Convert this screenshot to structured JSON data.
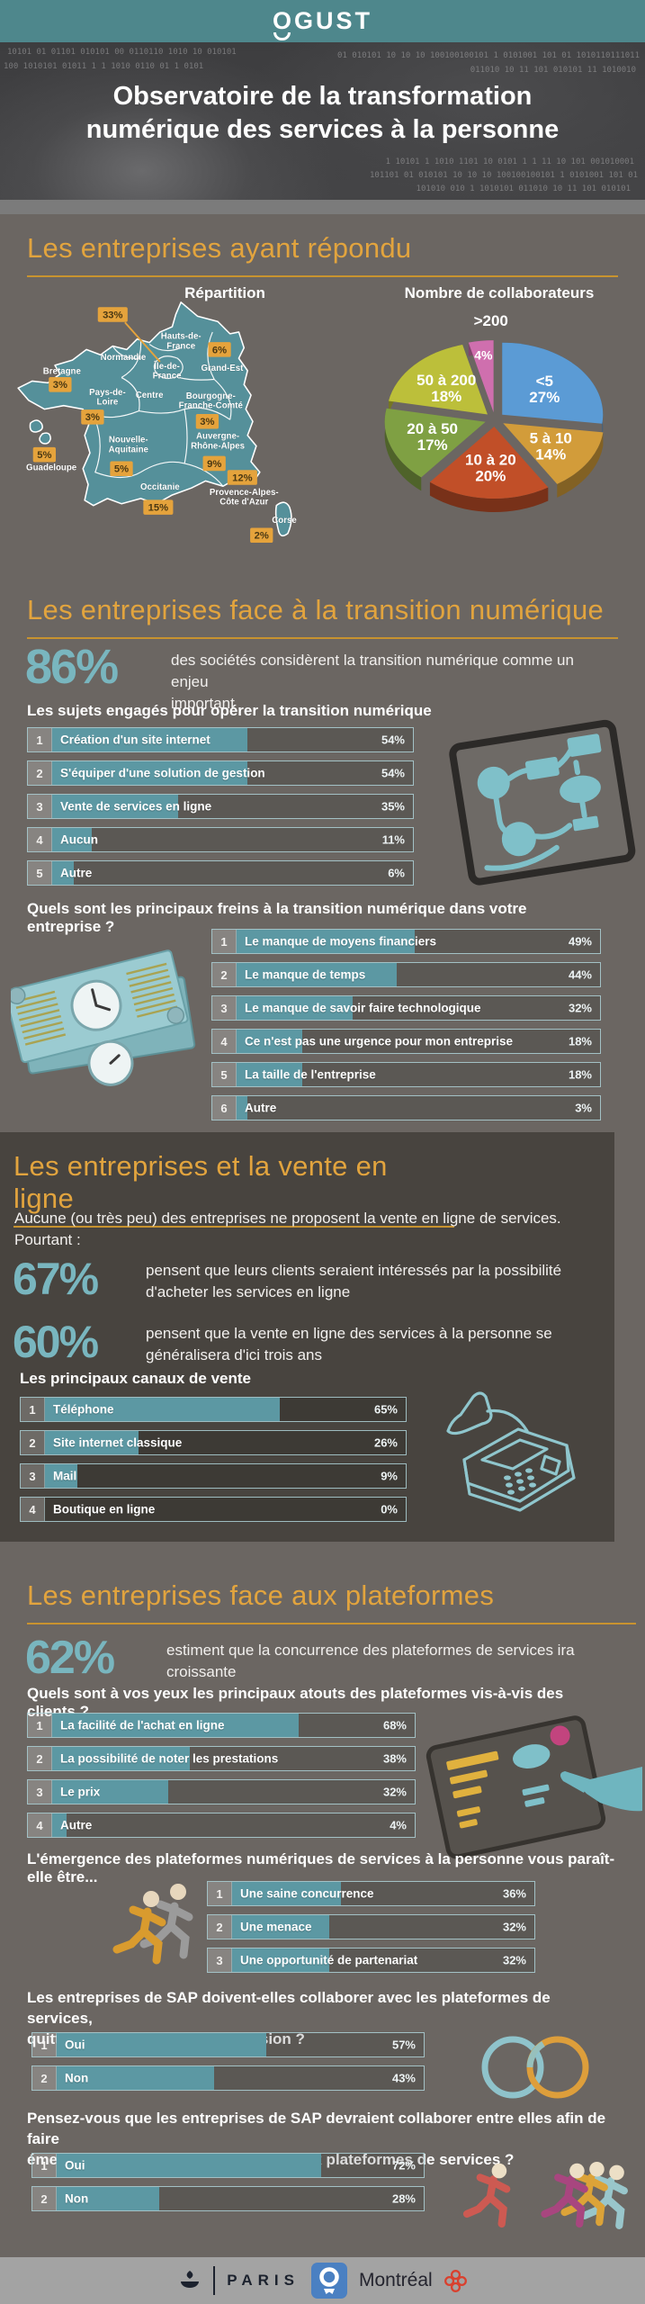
{
  "header": {
    "logo_o": "O",
    "logo_rest": "GUST"
  },
  "hero": {
    "title": "Observatoire de la transformation\nnumérique des services à la personne",
    "binary": [
      "10101 01 01101 010101 00 0110110 1010 10 010101",
      "100 1010101 01011 1 1 1010 0110 01 1 0101",
      "01 010101 10 10 10 100100100101 1 0101001 101 01 1010110111011",
      "011010 10 11 101 010101 11 1010010",
      "1 10101 1 1010 1101 10 0101 1 1 11 10 101 001010001",
      "101101 01 010101 10 10 10 100100100101 1 0101001 101 01",
      "101010 010 1 1010101 011010 10 11 101 010101"
    ]
  },
  "colors": {
    "header_teal": "#4e878c",
    "page_bg": "#6b6662",
    "dark_panel": "#48443f",
    "accent_orange": "#e2a43e",
    "stat_teal": "#79b6bf",
    "bar_fill": "#5c98a3",
    "map_region": "#55909a",
    "badge_bg": "#e5a33c",
    "footer_bg": "#a3a3a3",
    "montreal_red": "#d9402e",
    "ogust_blue": "#4a80c2"
  },
  "sections": {
    "respondents": {
      "heading": "Les entreprises ayant répondu"
    },
    "transition": {
      "heading": "Les entreprises face à la transition numérique",
      "stat_value": "86%",
      "stat_text": "des sociétés considèrent la transition numérique comme un enjeu\nimportant"
    },
    "vente": {
      "heading": "Les entreprises et la vente en ligne",
      "intro": "Aucune (ou très peu) des entreprises ne proposent la vente en ligne de services.\nPourtant :",
      "stat1_value": "67%",
      "stat1_text": "pensent que leurs clients seraient intéressés par la possibilité\nd'acheter les services en ligne",
      "stat2_value": "60%",
      "stat2_text": "pensent que la vente en ligne des services à la personne se\ngénéralisera d'ici trois ans"
    },
    "plateformes": {
      "heading": "Les entreprises face aux plateformes",
      "stat_value": "62%",
      "stat_text": "estiment que la concurrence des plateformes de services ira\ncroissante"
    }
  },
  "footer": {
    "paris_label": "PARIS",
    "montreal_label": "Montréal"
  },
  "chart_data": [
    {
      "id": "repartition",
      "type": "table",
      "title": "Répartition",
      "regions": [
        {
          "name": "Île-de-France",
          "value": 33
        },
        {
          "name": "Hauts-de-France",
          "value": null
        },
        {
          "name": "Normandie",
          "value": null
        },
        {
          "name": "Bretagne",
          "value": 3
        },
        {
          "name": "Pays-de-Loire",
          "value": 3
        },
        {
          "name": "Centre",
          "value": null
        },
        {
          "name": "Grand-Est",
          "value": 6
        },
        {
          "name": "Bourgogne-Franche-Comté",
          "value": 3
        },
        {
          "name": "Nouvelle-Aquitaine",
          "value": 5
        },
        {
          "name": "Auvergne-Rhône-Alpes",
          "value": 9
        },
        {
          "name": "Occitanie",
          "value": 15
        },
        {
          "name": "Provence-Alpes-Côte d'Azur",
          "value": 12
        },
        {
          "name": "Corse",
          "value": 2
        },
        {
          "name": "Guadeloupe",
          "value": 5
        }
      ]
    },
    {
      "id": "collaborateurs",
      "type": "pie",
      "title": "Nombre de collaborateurs",
      "categories": [
        "<5",
        "5 à 10",
        "10 à 20",
        "20 à 50",
        "50 à 200",
        ">200"
      ],
      "values": [
        27,
        14,
        20,
        17,
        18,
        4
      ],
      "colors": [
        "#5b9bd5",
        "#d29c3a",
        "#c14f28",
        "#7fa043",
        "#bcbf3a",
        "#cf6fae"
      ],
      "legend_position": "inside"
    },
    {
      "id": "sujets",
      "type": "bar",
      "title": "Les sujets engagés pour opérer la transition numérique",
      "categories": [
        "Création d'un site internet",
        "S'équiper d'une solution de gestion",
        "Vente de services en ligne",
        "Aucun",
        "Autre"
      ],
      "values": [
        54,
        54,
        35,
        11,
        6
      ],
      "xlim": [
        0,
        100
      ],
      "unit": "%"
    },
    {
      "id": "freins",
      "type": "bar",
      "title": "Quels sont les principaux freins à la transition numérique dans votre entreprise ?",
      "categories": [
        "Le manque de moyens financiers",
        "Le manque de temps",
        "Le manque de savoir faire technologique",
        "Ce n'est pas une urgence pour mon entreprise",
        "La taille de l'entreprise",
        "Autre"
      ],
      "values": [
        49,
        44,
        32,
        18,
        18,
        3
      ],
      "xlim": [
        0,
        100
      ],
      "unit": "%"
    },
    {
      "id": "canaux",
      "type": "bar",
      "title": "Les principaux canaux de vente",
      "categories": [
        "Téléphone",
        "Site internet classique",
        "Mail",
        "Boutique en ligne"
      ],
      "values": [
        65,
        26,
        9,
        0
      ],
      "xlim": [
        0,
        100
      ],
      "unit": "%"
    },
    {
      "id": "atouts",
      "type": "bar",
      "title": "Quels sont à vos yeux les principaux atouts des plateformes vis-à-vis des clients ?",
      "categories": [
        "La facilité de l'achat en ligne",
        "La possibilité de noter les prestations",
        "Le prix",
        "Autre"
      ],
      "values": [
        68,
        38,
        32,
        4
      ],
      "xlim": [
        0,
        100
      ],
      "unit": "%"
    },
    {
      "id": "emergence",
      "type": "bar",
      "title": "L'émergence des plateformes numériques de services à la personne vous paraît-elle être...",
      "categories": [
        "Une saine concurrence",
        "Une menace",
        "Une opportunité de partenariat"
      ],
      "values": [
        36,
        32,
        32
      ],
      "xlim": [
        0,
        100
      ],
      "unit": "%"
    },
    {
      "id": "sap_commission",
      "type": "bar",
      "title": "Les entreprises de SAP doivent-elles collaborer avec les plateformes de services,\nquitte à leur laisser une commission ?",
      "categories": [
        "Oui",
        "Non"
      ],
      "values": [
        57,
        43
      ],
      "xlim": [
        0,
        100
      ],
      "unit": "%"
    },
    {
      "id": "sap_collaboration",
      "type": "bar",
      "title": "Pensez-vous que les entreprises de SAP devraient collaborer entre elles afin de faire\némerger des solutions concurrentes aux plateformes de services ?",
      "categories": [
        "Oui",
        "Non"
      ],
      "values": [
        72,
        28
      ],
      "xlim": [
        0,
        100
      ],
      "unit": "%"
    }
  ]
}
